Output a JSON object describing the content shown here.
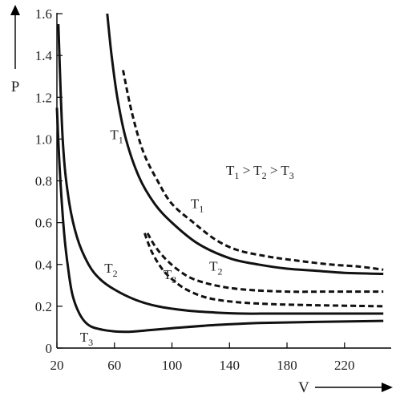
{
  "chart_data": {
    "type": "line",
    "xlabel": "V",
    "ylabel": "P",
    "xlim": [
      20,
      250
    ],
    "ylim": [
      0,
      1.6
    ],
    "xticks": [
      "20",
      "60",
      "100",
      "140",
      "180",
      "220"
    ],
    "yticks": [
      "0",
      "0.2",
      "0.4",
      "0.6",
      "0.8",
      "1.0",
      "1.2",
      "1.4",
      "1.6"
    ],
    "relation": {
      "parts": [
        "T",
        "1",
        " > T",
        "2",
        " > T",
        "3"
      ]
    },
    "series": [
      {
        "name": "T1",
        "label_base": "T",
        "label_sub": "1",
        "style": "solid",
        "label_at": [
          57,
          1.0
        ],
        "points": [
          [
            55,
            1.6
          ],
          [
            58,
            1.4
          ],
          [
            62,
            1.2
          ],
          [
            68,
            1.0
          ],
          [
            77,
            0.82
          ],
          [
            88,
            0.69
          ],
          [
            100,
            0.6
          ],
          [
            118,
            0.5
          ],
          [
            140,
            0.43
          ],
          [
            160,
            0.4
          ],
          [
            180,
            0.38
          ],
          [
            200,
            0.37
          ],
          [
            220,
            0.36
          ],
          [
            247,
            0.355
          ]
        ]
      },
      {
        "name": "T1",
        "label_base": "T",
        "label_sub": "1",
        "style": "dashed",
        "label_at": [
          113,
          0.67
        ],
        "points": [
          [
            66,
            1.33
          ],
          [
            72,
            1.13
          ],
          [
            80,
            0.94
          ],
          [
            90,
            0.8
          ],
          [
            100,
            0.69
          ],
          [
            115,
            0.6
          ],
          [
            130,
            0.52
          ],
          [
            145,
            0.47
          ],
          [
            165,
            0.44
          ],
          [
            185,
            0.42
          ],
          [
            210,
            0.4
          ],
          [
            230,
            0.39
          ],
          [
            247,
            0.375
          ]
        ]
      },
      {
        "name": "T2",
        "label_base": "T",
        "label_sub": "2",
        "style": "solid",
        "label_at": [
          53,
          0.36
        ],
        "points": [
          [
            21,
            1.55
          ],
          [
            24,
            1.0
          ],
          [
            28,
            0.72
          ],
          [
            34,
            0.53
          ],
          [
            42,
            0.4
          ],
          [
            50,
            0.33
          ],
          [
            60,
            0.28
          ],
          [
            75,
            0.23
          ],
          [
            90,
            0.2
          ],
          [
            110,
            0.18
          ],
          [
            130,
            0.17
          ],
          [
            150,
            0.165
          ],
          [
            170,
            0.165
          ],
          [
            200,
            0.165
          ],
          [
            247,
            0.165
          ]
        ]
      },
      {
        "name": "T2",
        "label_base": "T",
        "label_sub": "2",
        "style": "dashed",
        "label_at": [
          126,
          0.37
        ],
        "points": [
          [
            83,
            0.55
          ],
          [
            88,
            0.49
          ],
          [
            95,
            0.43
          ],
          [
            105,
            0.37
          ],
          [
            115,
            0.33
          ],
          [
            130,
            0.3
          ],
          [
            150,
            0.28
          ],
          [
            180,
            0.27
          ],
          [
            210,
            0.27
          ],
          [
            247,
            0.27
          ]
        ]
      },
      {
        "name": "T3",
        "label_base": "T",
        "label_sub": "3",
        "style": "solid",
        "label_at": [
          36,
          0.03
        ],
        "points": [
          [
            20,
            1.15
          ],
          [
            22,
            0.85
          ],
          [
            25,
            0.55
          ],
          [
            28,
            0.37
          ],
          [
            31,
            0.25
          ],
          [
            36,
            0.16
          ],
          [
            42,
            0.11
          ],
          [
            50,
            0.09
          ],
          [
            60,
            0.08
          ],
          [
            70,
            0.078
          ],
          [
            80,
            0.083
          ],
          [
            100,
            0.095
          ],
          [
            130,
            0.11
          ],
          [
            160,
            0.12
          ],
          [
            200,
            0.125
          ],
          [
            247,
            0.13
          ]
        ]
      },
      {
        "name": "T3",
        "label_base": "T",
        "label_sub": "3",
        "style": "dashed",
        "label_at": [
          94,
          0.33
        ],
        "points": [
          [
            81,
            0.55
          ],
          [
            86,
            0.46
          ],
          [
            93,
            0.38
          ],
          [
            100,
            0.33
          ],
          [
            110,
            0.28
          ],
          [
            125,
            0.24
          ],
          [
            145,
            0.22
          ],
          [
            170,
            0.21
          ],
          [
            200,
            0.205
          ],
          [
            247,
            0.2
          ]
        ]
      }
    ]
  }
}
